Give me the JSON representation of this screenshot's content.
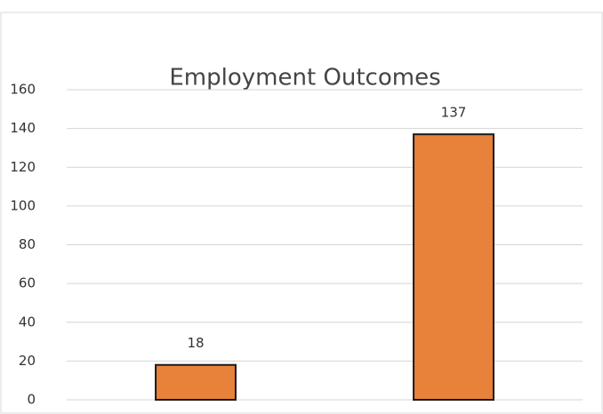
{
  "chart_data": {
    "type": "bar",
    "title": "Employment Outcomes",
    "categories": [
      null,
      null
    ],
    "values": [
      18,
      137
    ],
    "color": "#e8823a",
    "ylim": [
      0,
      160
    ],
    "yticks": [
      0,
      20,
      40,
      60,
      80,
      100,
      120,
      140,
      160
    ],
    "grid": true,
    "data_labels": true
  }
}
